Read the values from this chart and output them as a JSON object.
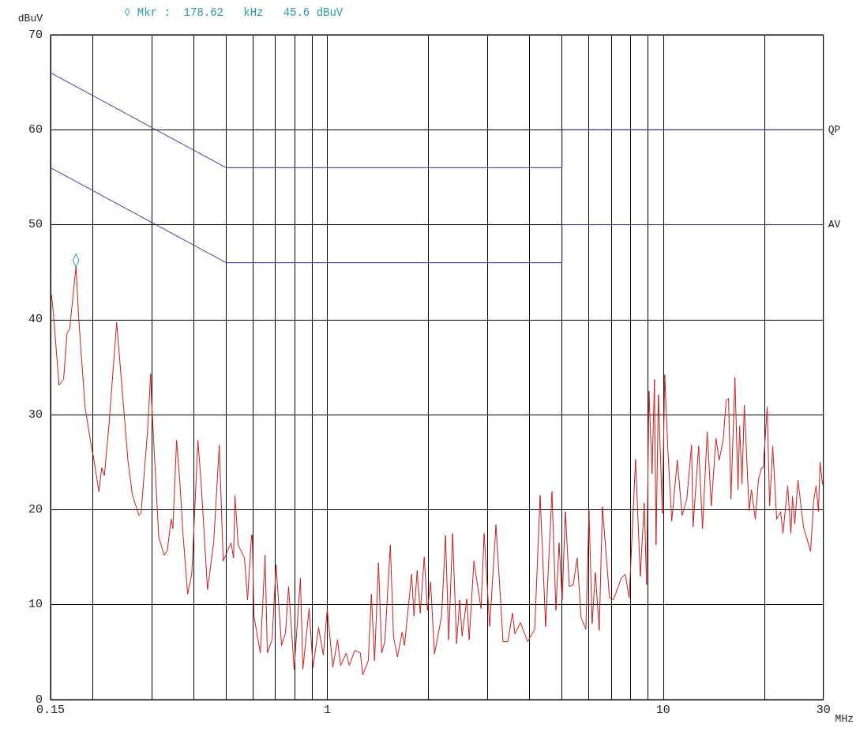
{
  "chart_data": {
    "type": "line",
    "title": "◊ Mkr :  178.62   kHz   45.6 dBuV",
    "xlabel": "MHz",
    "ylabel": "dBuV",
    "log": "x",
    "grid": true,
    "legend": false,
    "marker": "none",
    "line_style": "solid",
    "xlim": [
      0.15,
      30
    ],
    "xticks": [
      0.15,
      {
        "value": 0.2,
        "label": null
      },
      {
        "value": 0.3,
        "label": null
      },
      {
        "value": 0.4,
        "label": null
      },
      {
        "value": 0.5,
        "label": null
      },
      {
        "value": 0.6,
        "label": null
      },
      {
        "value": 0.7,
        "label": null
      },
      {
        "value": 0.8,
        "label": null
      },
      {
        "value": 0.9,
        "label": null
      },
      1,
      {
        "value": 2,
        "label": null
      },
      {
        "value": 3,
        "label": null
      },
      {
        "value": 4,
        "label": null
      },
      {
        "value": 5,
        "label": null
      },
      {
        "value": 6,
        "label": null
      },
      {
        "value": 7,
        "label": null
      },
      {
        "value": 8,
        "label": null
      },
      {
        "value": 9,
        "label": null
      },
      10,
      {
        "value": 20,
        "label": null
      },
      30
    ],
    "ylim": [
      0,
      70
    ],
    "yticks": [
      0,
      10,
      20,
      30,
      40,
      50,
      60,
      70
    ],
    "annotations": [
      {
        "text": "◊",
        "x": 0.1786,
        "y": 45.6
      }
    ],
    "series": [
      {
        "color": "#c41e1e",
        "x": [
          0.151,
          0.153,
          0.159,
          0.164,
          0.168,
          0.171,
          0.1786,
          0.182,
          0.19,
          0.199,
          0.201,
          0.209,
          0.213,
          0.217,
          0.224,
          0.236,
          0.244,
          0.255,
          0.263,
          0.275,
          0.279,
          0.292,
          0.298,
          0.3,
          0.315,
          0.327,
          0.334,
          0.343,
          0.347,
          0.356,
          0.364,
          0.372,
          0.384,
          0.395,
          0.401,
          0.412,
          0.421,
          0.44,
          0.459,
          0.477,
          0.49,
          0.517,
          0.526,
          0.531,
          0.543,
          0.567,
          0.579,
          0.595,
          0.598,
          0.605,
          0.632,
          0.653,
          0.663,
          0.685,
          0.704,
          0.731,
          0.751,
          0.767,
          0.797,
          0.832,
          0.846,
          0.883,
          0.907,
          0.942,
          0.973,
          1.0,
          1.039,
          1.073,
          1.096,
          1.139,
          1.163,
          1.208,
          1.255,
          1.275,
          1.325,
          1.353,
          1.383,
          1.421,
          1.452,
          1.484,
          1.541,
          1.575,
          1.618,
          1.671,
          1.698,
          1.783,
          1.812,
          1.852,
          1.892,
          1.944,
          1.987,
          2.03,
          2.086,
          2.19,
          2.25,
          2.299,
          2.362,
          2.427,
          2.48,
          2.52,
          2.603,
          2.646,
          2.733,
          2.869,
          2.932,
          3.045,
          3.179,
          3.338,
          3.448,
          3.561,
          3.62,
          3.76,
          3.949,
          4.146,
          4.303,
          4.469,
          4.667,
          4.795,
          4.899,
          5.006,
          5.116,
          5.256,
          5.4,
          5.548,
          5.7,
          5.888,
          6.016,
          6.147,
          6.282,
          6.454,
          6.595,
          6.924,
          7.113,
          7.508,
          7.714,
          7.925,
          8.277,
          8.551,
          8.785,
          8.928,
          9.074,
          9.271,
          9.423,
          9.526,
          9.681,
          9.947,
          10.11,
          10.33,
          10.61,
          11.02,
          11.39,
          11.76,
          12.15,
          12.28,
          12.76,
          13.1,
          13.53,
          13.91,
          14.37,
          14.68,
          15.09,
          15.41,
          15.66,
          15.92,
          16.36,
          16.71,
          16.89,
          17.17,
          17.45,
          18.03,
          18.32,
          18.82,
          19.23,
          19.65,
          19.87,
          20.41,
          20.75,
          21.2,
          21.78,
          22.38,
          22.74,
          23.49,
          24.01,
          24.27,
          24.66,
          25.2,
          26.17,
          27.48,
          28.08,
          28.54,
          29.01,
          29.33,
          29.81
        ],
        "values": [
          42.6,
          40.6,
          33.1,
          33.7,
          38.6,
          39.0,
          45.6,
          40.1,
          30.8,
          26.4,
          25.7,
          21.9,
          24.4,
          23.6,
          29.0,
          39.7,
          33.5,
          25.2,
          21.5,
          19.4,
          19.6,
          28.5,
          34.3,
          31.3,
          17.1,
          15.2,
          15.7,
          19.0,
          18.0,
          27.3,
          22.9,
          17.4,
          11.1,
          13.2,
          18.1,
          27.3,
          22.9,
          11.6,
          16.5,
          26.8,
          14.6,
          16.5,
          14.9,
          21.5,
          16.3,
          14.9,
          10.5,
          17.3,
          17.3,
          8.8,
          4.9,
          15.2,
          4.9,
          6.3,
          14.2,
          5.7,
          7.0,
          11.9,
          3.2,
          12.8,
          3.2,
          9.6,
          3.4,
          7.6,
          4.7,
          9.5,
          3.4,
          6.3,
          3.6,
          4.9,
          3.6,
          5.2,
          4.9,
          2.6,
          4.1,
          11.1,
          4.1,
          14.4,
          4.9,
          6.1,
          16.3,
          6.6,
          4.5,
          7.1,
          5.7,
          13.2,
          8.8,
          13.6,
          9.1,
          15.0,
          9.4,
          12.4,
          4.8,
          8.8,
          17.3,
          6.3,
          17.5,
          5.9,
          10.5,
          6.7,
          10.6,
          6.3,
          14.6,
          9.6,
          17.5,
          7.7,
          18.4,
          6.1,
          6.1,
          9.1,
          6.9,
          8.1,
          6.1,
          7.4,
          21.5,
          7.7,
          21.9,
          9.4,
          16.5,
          10.5,
          19.8,
          11.9,
          12.1,
          14.9,
          8.6,
          7.4,
          19.9,
          8.0,
          13.4,
          7.3,
          20.3,
          10.7,
          10.5,
          12.8,
          13.2,
          10.7,
          25.3,
          13.0,
          20.7,
          12.1,
          32.5,
          23.8,
          33.7,
          16.3,
          32.1,
          19.6,
          34.2,
          26.3,
          18.8,
          25.2,
          19.4,
          21.1,
          26.8,
          18.2,
          26.7,
          18.0,
          28.2,
          20.4,
          27.5,
          25.2,
          27.3,
          31.5,
          31.7,
          21.1,
          33.9,
          22.1,
          28.8,
          22.7,
          31.0,
          19.9,
          22.1,
          19.0,
          23.2,
          24.4,
          24.4,
          30.8,
          20.4,
          26.7,
          19.0,
          19.8,
          17.5,
          22.5,
          17.5,
          21.4,
          18.5,
          23.1,
          18.2,
          15.6,
          21.0,
          22.5,
          19.8,
          25.0,
          22.7
        ]
      },
      {
        "name": "QP",
        "color": "#35358f",
        "x": [
          0.15,
          0.5,
          5,
          5,
          30
        ],
        "values": [
          66,
          56,
          56,
          60,
          60
        ]
      },
      {
        "name": "AV",
        "color": "#35358f",
        "x": [
          0.15,
          0.5,
          5,
          5,
          30
        ],
        "values": [
          56,
          46,
          46,
          50,
          50
        ]
      }
    ]
  }
}
